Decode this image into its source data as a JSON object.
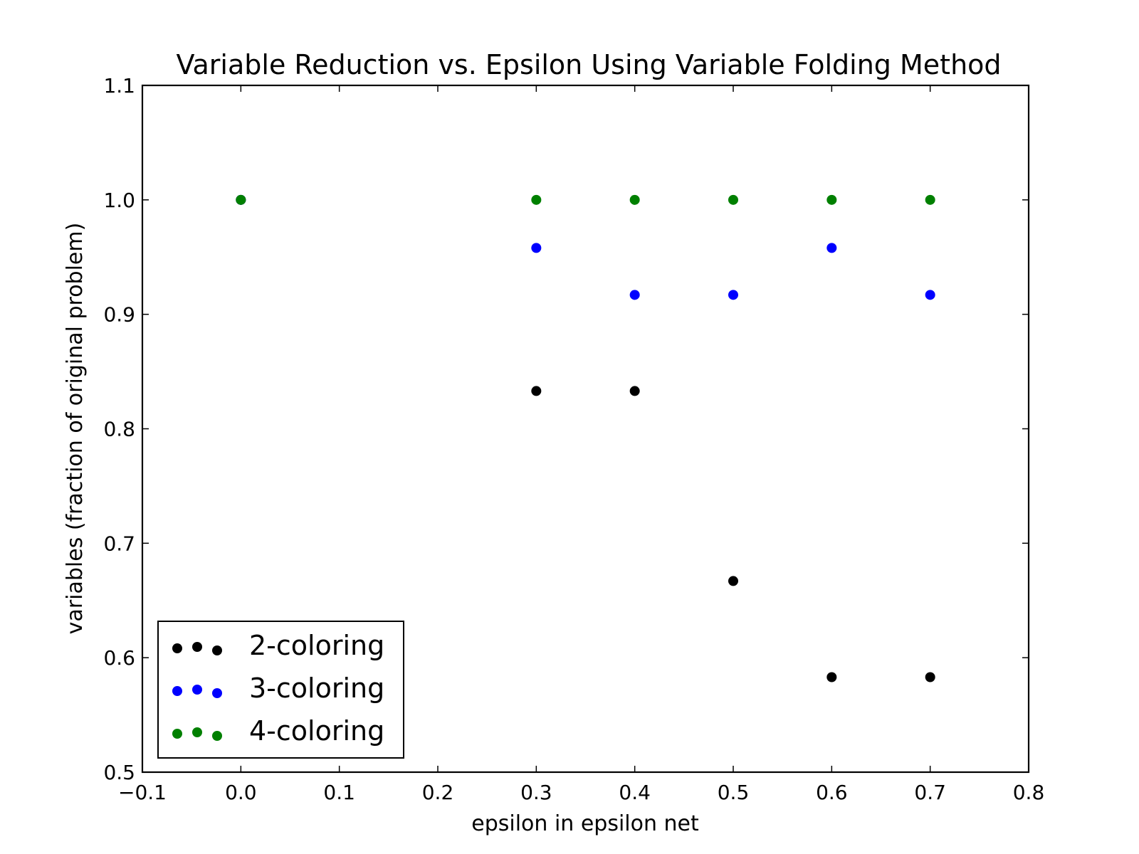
{
  "chart_data": {
    "type": "scatter",
    "title": "Variable Reduction vs. Epsilon Using Variable Folding Method",
    "xlabel": "epsilon in epsilon net",
    "ylabel": "variables (fraction of original problem)",
    "xlim": [
      -0.1,
      0.8
    ],
    "ylim": [
      0.5,
      1.1
    ],
    "x_ticks": [
      "−0.1",
      "0.0",
      "0.1",
      "0.2",
      "0.3",
      "0.4",
      "0.5",
      "0.6",
      "0.7",
      "0.8"
    ],
    "y_ticks": [
      "0.5",
      "0.6",
      "0.7",
      "0.8",
      "0.9",
      "1.0",
      "1.1"
    ],
    "grid": false,
    "legend_position": "lower-left",
    "series": [
      {
        "name": "2-coloring",
        "color": "#000000",
        "points": [
          [
            0.0,
            1.0
          ],
          [
            0.3,
            0.833
          ],
          [
            0.4,
            0.833
          ],
          [
            0.5,
            0.667
          ],
          [
            0.6,
            0.583
          ],
          [
            0.7,
            0.583
          ]
        ]
      },
      {
        "name": "3-coloring",
        "color": "#0000ff",
        "points": [
          [
            0.0,
            1.0
          ],
          [
            0.3,
            0.958
          ],
          [
            0.4,
            0.917
          ],
          [
            0.5,
            0.917
          ],
          [
            0.6,
            0.958
          ],
          [
            0.7,
            0.917
          ]
        ]
      },
      {
        "name": "4-coloring",
        "color": "#008000",
        "points": [
          [
            0.0,
            1.0
          ],
          [
            0.3,
            1.0
          ],
          [
            0.4,
            1.0
          ],
          [
            0.5,
            1.0
          ],
          [
            0.6,
            1.0
          ],
          [
            0.7,
            1.0
          ]
        ]
      }
    ]
  }
}
